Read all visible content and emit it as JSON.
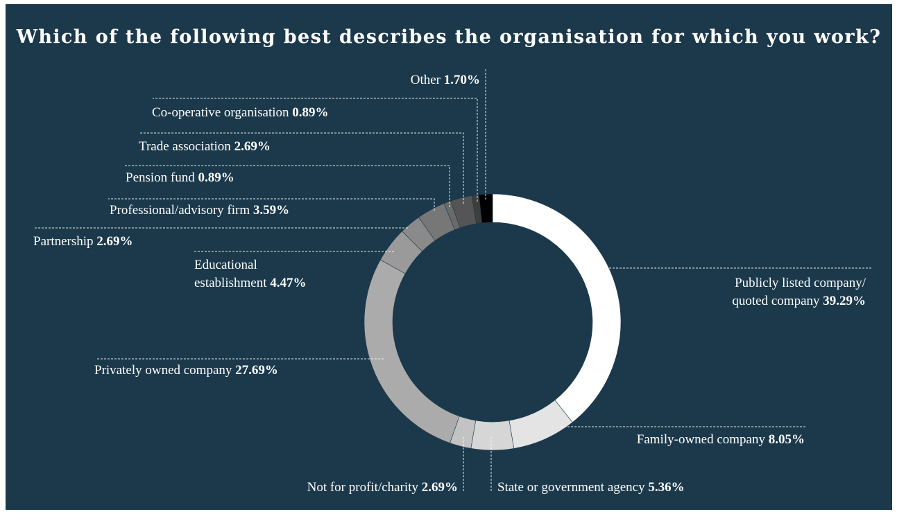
{
  "chart_data": {
    "type": "pie",
    "variant": "donut",
    "title": "Which of the following best describes the organisation for which you work?",
    "start": "12 o'clock",
    "direction": "clockwise",
    "slices": [
      {
        "label": "Publicly listed company/ quoted company",
        "value": 39.29,
        "display": "39.29%",
        "color": "#ffffff"
      },
      {
        "label": "Family-owned company",
        "value": 8.05,
        "display": "8.05%",
        "color": "#e4e4e4"
      },
      {
        "label": "State or government agency",
        "value": 5.36,
        "display": "5.36%",
        "color": "#d6d6d6"
      },
      {
        "label": "Not for profit/charity",
        "value": 2.69,
        "display": "2.69%",
        "color": "#c3c3c3"
      },
      {
        "label": "Privately owned company",
        "value": 27.69,
        "display": "27.69%",
        "color": "#ababab"
      },
      {
        "label": "Educational establishment",
        "value": 4.47,
        "display": "4.47%",
        "color": "#9a9a9a"
      },
      {
        "label": "Partnership",
        "value": 2.69,
        "display": "2.69%",
        "color": "#8a8a8a"
      },
      {
        "label": "Professional/advisory firm",
        "value": 3.59,
        "display": "3.59%",
        "color": "#777777"
      },
      {
        "label": "Pension fund",
        "value": 0.89,
        "display": "0.89%",
        "color": "#6a6a6a"
      },
      {
        "label": "Trade association",
        "value": 2.69,
        "display": "2.69%",
        "color": "#555555"
      },
      {
        "label": "Co-operative organisation",
        "value": 0.89,
        "display": "0.89%",
        "color": "#3e3e3e"
      },
      {
        "label": "Other",
        "value": 1.7,
        "display": "1.70%",
        "color": "#000000"
      }
    ]
  },
  "colors": {
    "background": "#1b394b",
    "text": "#ffffff"
  }
}
